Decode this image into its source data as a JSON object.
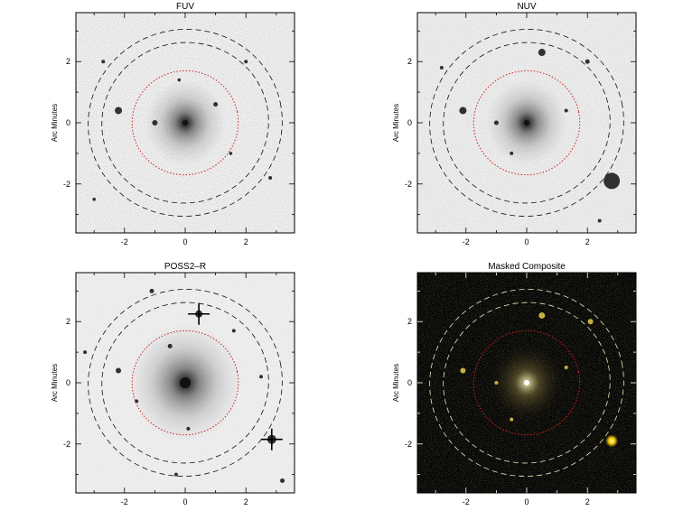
{
  "panels": [
    {
      "title": "FUV",
      "ylabel": "Arc Minutes",
      "xticks": [
        "-2",
        "0",
        "2"
      ],
      "yticks": [
        "2",
        "0",
        "-2"
      ],
      "style": "grey"
    },
    {
      "title": "NUV",
      "ylabel": "Arc Minutes",
      "xticks": [
        "-2",
        "0",
        "2"
      ],
      "yticks": [
        "2",
        "0",
        "-2"
      ],
      "style": "grey"
    },
    {
      "title": "POSS2–R",
      "ylabel": "Arc Minutes",
      "xticks": [
        "-2",
        "0",
        "2"
      ],
      "yticks": [
        "2",
        "0",
        "-2"
      ],
      "style": "grey"
    },
    {
      "title": "Masked Composite",
      "ylabel": "Arc Minutes",
      "xticks": [
        "-2",
        "0",
        "2"
      ],
      "yticks": [
        "2",
        "0",
        "-2"
      ],
      "style": "color"
    }
  ],
  "axis_range_arcmin": [
    -3.6,
    3.6
  ],
  "colors": {
    "inner_ellipse": "#d02020",
    "outer_ellipse_grey": "#111111",
    "outer_ellipse_color": "#e8e8c0",
    "composite_bg": "#050505"
  }
}
